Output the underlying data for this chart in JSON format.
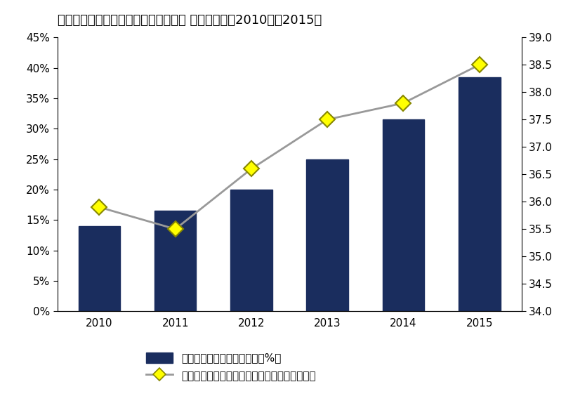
{
  "title": "国内法人向けクライアント仮想化市場 導入率予測、2010年～2015年",
  "years": [
    2010,
    2011,
    2012,
    2013,
    2014,
    2015
  ],
  "bar_values": [
    14,
    16.5,
    20,
    25,
    31.5,
    38.5
  ],
  "line_values": [
    35.9,
    35.5,
    36.6,
    37.5,
    37.8,
    38.5
  ],
  "bar_color": "#1a2d5e",
  "line_color": "#999999",
  "marker_color": "#ffff00",
  "marker_edge_color": "#888800",
  "left_ylim": [
    0,
    45
  ],
  "right_ylim": [
    34.0,
    39.0
  ],
  "left_yticks": [
    0,
    5,
    10,
    15,
    20,
    25,
    30,
    35,
    40,
    45
  ],
  "right_yticks": [
    34.0,
    34.5,
    35.0,
    35.5,
    36.0,
    36.5,
    37.0,
    37.5,
    38.0,
    38.5,
    39.0
  ],
  "legend1": "クライアント仮想化導入率（%）",
  "legend2": "法人向けクライアント端末累積台数（百万台）",
  "background_color": "#ffffff",
  "title_fontsize": 13,
  "tick_fontsize": 11,
  "legend_fontsize": 11
}
